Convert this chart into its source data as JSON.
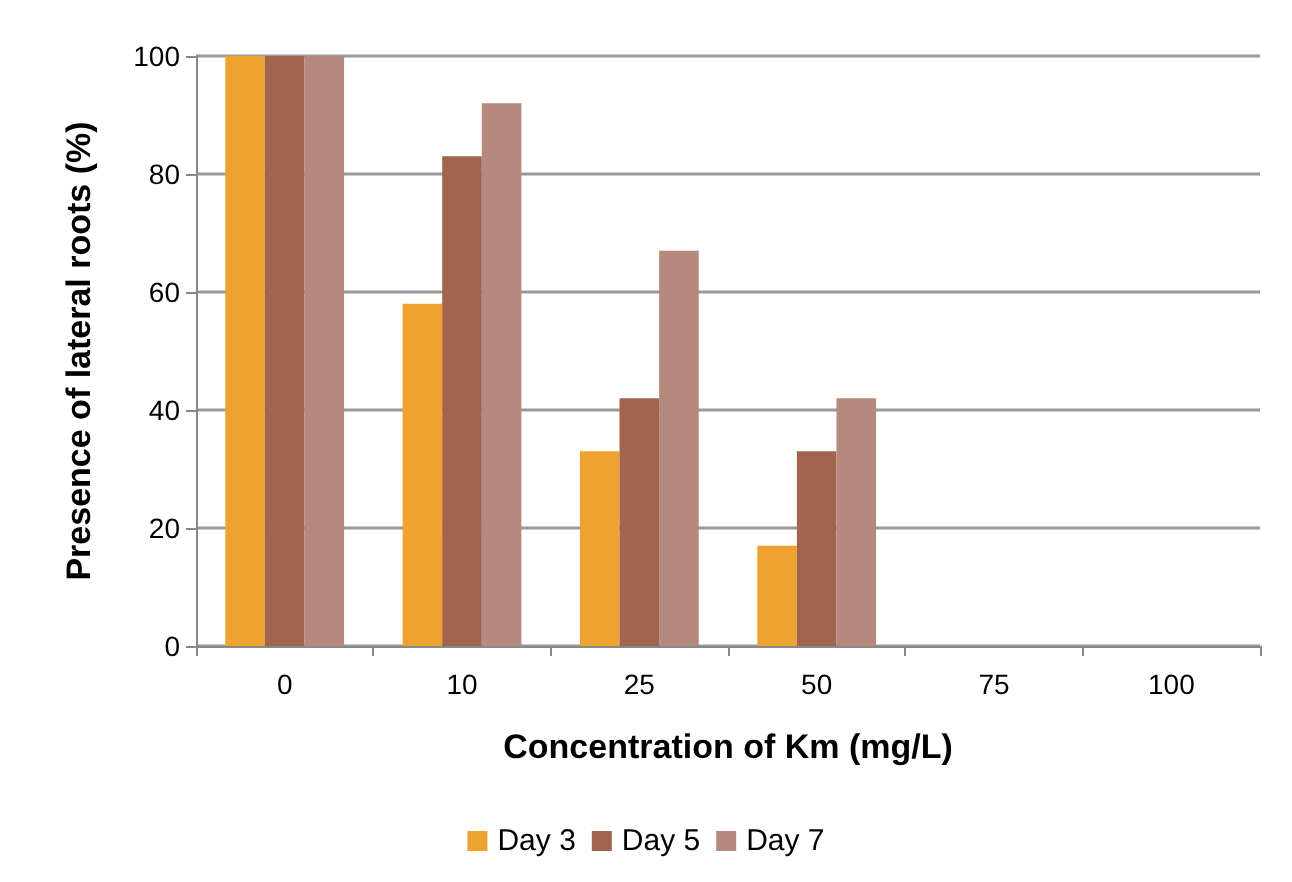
{
  "chart_data": {
    "type": "bar",
    "xlabel": "Concentration of Km (mg/L)",
    "ylabel": "Presence of lateral roots (%)",
    "categories": [
      "0",
      "10",
      "25",
      "50",
      "75",
      "100"
    ],
    "series": [
      {
        "name": "Day 3",
        "color": "#eea22f",
        "values": [
          100,
          58,
          33,
          17,
          0,
          0
        ]
      },
      {
        "name": "Day 5",
        "color": "#a2644e",
        "values": [
          100,
          83,
          42,
          33,
          0,
          0
        ]
      },
      {
        "name": "Day 7",
        "color": "#b5897e",
        "values": [
          100,
          92,
          67,
          42,
          0,
          0
        ]
      }
    ],
    "ylim": [
      0,
      100
    ],
    "yticks": [
      0,
      20,
      40,
      60,
      80,
      100
    ],
    "grid": "y",
    "legend": "bottom"
  }
}
